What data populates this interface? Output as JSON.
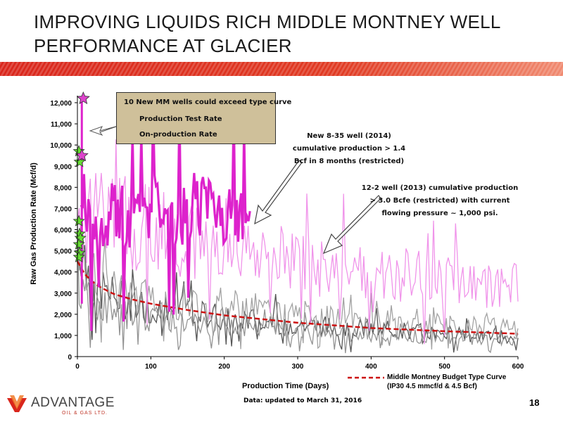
{
  "slide": {
    "title_line1": "IMPROVING LIQUIDS RICH MIDDLE MONTNEY WELL",
    "title_line2": "PERFORMANCE AT GLACIER",
    "footnote": "Data: updated to March 31, 2016",
    "page_number": "18",
    "logo_text": "ADVANTAGE",
    "logo_subtext": "OIL & GAS LTD.",
    "brand_color": "#d9261c"
  },
  "legend": {
    "title": "10 New MM wells could exceed type curve",
    "items": [
      {
        "label": "Production Test Rate",
        "color": "#66dd33",
        "icon": "star-icon"
      },
      {
        "label": "On-production Rate",
        "color": "#dd44cc",
        "icon": "star-icon"
      }
    ],
    "budget_line1": "Middle Montney Budget Type Curve",
    "budget_line2": "(IP30 4.5 mmcf/d & 4.5 Bcf)",
    "budget_color": "#cc1111"
  },
  "annotations": {
    "well_2014": [
      "New 8-35 well (2014)",
      "cumulative production > 1.4",
      "Bcf in 8 months (restricted)"
    ],
    "well_2013": [
      "12-2 well (2013) cumulative production",
      "> 3.0 Bcfe (restricted) with current",
      "flowing pressure  ~ 1,000 psi."
    ]
  },
  "chart_data": {
    "type": "line",
    "xlabel": "Production Time (Days)",
    "ylabel": "Raw Gas Production Rate (Mcf/d)",
    "xlim": [
      0,
      600
    ],
    "ylim": [
      0,
      12000
    ],
    "x_ticks": [
      "0",
      "100",
      "200",
      "300",
      "400",
      "500",
      "600"
    ],
    "y_ticks": [
      "0",
      "1,000",
      "2,000",
      "3,000",
      "4,000",
      "5,000",
      "6,000",
      "7,000",
      "8,000",
      "9,000",
      "10,000",
      "11,000",
      "12,000"
    ],
    "grid": false,
    "series": [
      {
        "name": "Middle Montney Budget Type Curve",
        "style": "dashed",
        "color": "#cc1111",
        "x": [
          0,
          10,
          20,
          30,
          50,
          75,
          100,
          150,
          200,
          300,
          400,
          500,
          600
        ],
        "y": [
          4500,
          3900,
          3550,
          3300,
          2950,
          2700,
          2500,
          2200,
          1950,
          1600,
          1350,
          1200,
          1080
        ]
      },
      {
        "style": "thick",
        "color": "#dd22cc",
        "x": [
          5,
          15,
          30,
          50,
          75,
          100,
          125,
          150,
          175,
          200,
          215,
          230,
          235
        ],
        "y": [
          8500,
          6500,
          6000,
          6900,
          6300,
          7300,
          6000,
          6900,
          7500,
          6800,
          7000,
          6400,
          5700
        ]
      },
      {
        "style": "thin",
        "color": "#ee88e8",
        "x": [
          0,
          20,
          50,
          100,
          150,
          200,
          250,
          300,
          350,
          400,
          450,
          500,
          550,
          600
        ],
        "y": [
          6000,
          6800,
          6500,
          6000,
          5700,
          5200,
          4800,
          4500,
          4200,
          4000,
          3800,
          3600,
          3400,
          3300
        ]
      },
      {
        "style": "thin",
        "color": "#444444",
        "x": [
          0,
          20,
          50,
          100,
          150,
          200,
          250,
          300,
          350,
          400,
          450,
          500,
          550,
          600
        ],
        "y": [
          6000,
          3500,
          2800,
          2300,
          2100,
          1900,
          1700,
          1500,
          1400,
          1300,
          1200,
          1100,
          1000,
          900
        ]
      },
      {
        "style": "thin",
        "color": "#888888",
        "x": [
          0,
          20,
          50,
          100,
          150,
          200,
          250,
          300,
          350,
          400,
          450,
          500,
          550,
          600
        ],
        "y": [
          3500,
          2600,
          2100,
          1800,
          1600,
          1400,
          1300,
          1200,
          1100,
          1000,
          950,
          900,
          850,
          800
        ]
      },
      {
        "style": "thin",
        "color": "#999999",
        "x": [
          0,
          20,
          50,
          100,
          150,
          200,
          250,
          300,
          350,
          400,
          450,
          500,
          550,
          600
        ],
        "y": [
          5000,
          3800,
          3000,
          2700,
          2600,
          2400,
          2200,
          2000,
          1800,
          1700,
          1600,
          1500,
          1400,
          1300
        ]
      }
    ],
    "markers": {
      "production_test_rate": [
        {
          "x": 2,
          "y": 9700
        },
        {
          "x": 3,
          "y": 9200
        },
        {
          "x": 2,
          "y": 6400
        },
        {
          "x": 3,
          "y": 5800
        },
        {
          "x": 4,
          "y": 5600
        },
        {
          "x": 2,
          "y": 5300
        },
        {
          "x": 3,
          "y": 4900
        },
        {
          "x": 2,
          "y": 4700
        }
      ],
      "on_production_rate": [
        {
          "x": 8,
          "y": 12200
        },
        {
          "x": 6,
          "y": 9500
        }
      ]
    }
  }
}
